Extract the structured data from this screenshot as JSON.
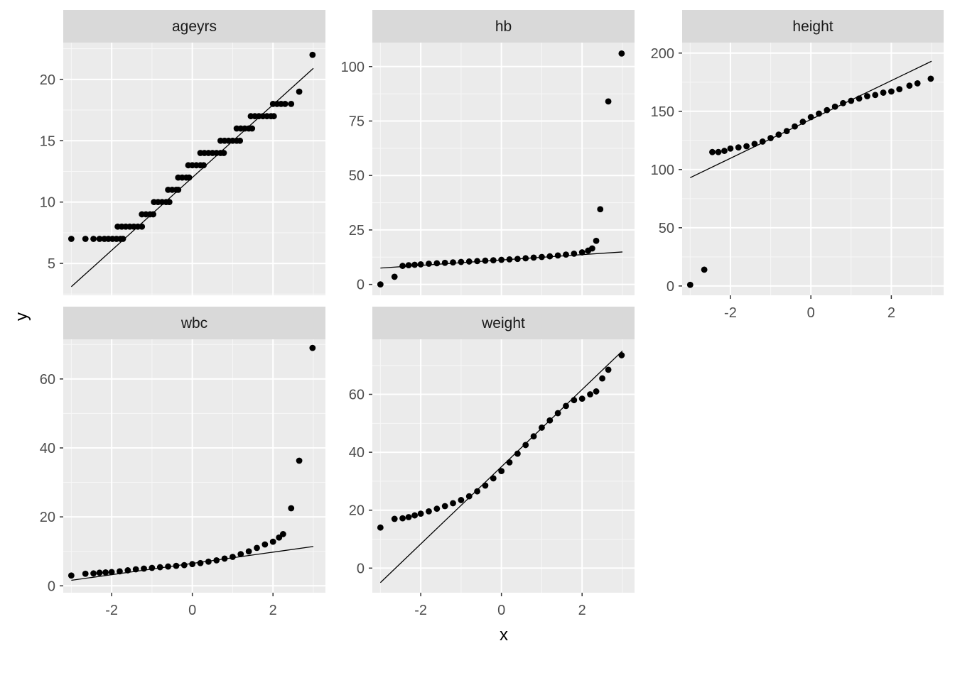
{
  "chart_data": {
    "type": "scatter",
    "subtype": "qq-facets",
    "xlabel": "x",
    "ylabel": "y",
    "x_ticks": [
      -2,
      0,
      2
    ],
    "x_range": [
      -3.2,
      3.3
    ],
    "grid": true,
    "facets": [
      {
        "name": "ageyrs",
        "ylim": [
          2.4,
          23.0
        ],
        "yticks": [
          5,
          10,
          15,
          20
        ],
        "line": {
          "x": [
            -3.0,
            3.0
          ],
          "y": [
            3.1,
            20.9
          ]
        },
        "points": [
          [
            -3.0,
            7
          ],
          [
            -2.65,
            7
          ],
          [
            -2.45,
            7
          ],
          [
            -2.3,
            7
          ],
          [
            -2.18,
            7
          ],
          [
            -2.08,
            7
          ],
          [
            -1.98,
            7
          ],
          [
            -1.88,
            7
          ],
          [
            -1.78,
            7
          ],
          [
            -1.72,
            7
          ],
          [
            -1.85,
            8
          ],
          [
            -1.75,
            8
          ],
          [
            -1.65,
            8
          ],
          [
            -1.55,
            8
          ],
          [
            -1.45,
            8
          ],
          [
            -1.35,
            8
          ],
          [
            -1.25,
            8
          ],
          [
            -1.25,
            9
          ],
          [
            -1.15,
            9
          ],
          [
            -1.05,
            9
          ],
          [
            -0.97,
            9
          ],
          [
            -0.95,
            10
          ],
          [
            -0.85,
            10
          ],
          [
            -0.75,
            10
          ],
          [
            -0.65,
            10
          ],
          [
            -0.57,
            10
          ],
          [
            -0.6,
            11
          ],
          [
            -0.5,
            11
          ],
          [
            -0.4,
            11
          ],
          [
            -0.35,
            11
          ],
          [
            -0.35,
            12
          ],
          [
            -0.25,
            12
          ],
          [
            -0.15,
            12
          ],
          [
            -0.08,
            12
          ],
          [
            -0.1,
            13
          ],
          [
            0.0,
            13
          ],
          [
            0.1,
            13
          ],
          [
            0.2,
            13
          ],
          [
            0.28,
            13
          ],
          [
            0.2,
            14
          ],
          [
            0.3,
            14
          ],
          [
            0.4,
            14
          ],
          [
            0.5,
            14
          ],
          [
            0.6,
            14
          ],
          [
            0.7,
            14
          ],
          [
            0.78,
            14
          ],
          [
            0.7,
            15
          ],
          [
            0.8,
            15
          ],
          [
            0.9,
            15
          ],
          [
            1.0,
            15
          ],
          [
            1.1,
            15
          ],
          [
            1.18,
            15
          ],
          [
            1.1,
            16
          ],
          [
            1.2,
            16
          ],
          [
            1.3,
            16
          ],
          [
            1.4,
            16
          ],
          [
            1.48,
            16
          ],
          [
            1.45,
            17
          ],
          [
            1.55,
            17
          ],
          [
            1.65,
            17
          ],
          [
            1.75,
            17
          ],
          [
            1.85,
            17
          ],
          [
            1.95,
            17
          ],
          [
            2.02,
            17
          ],
          [
            2.0,
            18
          ],
          [
            2.1,
            18
          ],
          [
            2.2,
            18
          ],
          [
            2.3,
            18
          ],
          [
            2.45,
            18
          ],
          [
            2.65,
            19
          ],
          [
            2.98,
            22
          ]
        ]
      },
      {
        "name": "hb",
        "ylim": [
          -5.0,
          111.0
        ],
        "yticks": [
          0,
          25,
          50,
          75,
          100
        ],
        "line": {
          "x": [
            -3.0,
            3.0
          ],
          "y": [
            7.5,
            14.9
          ]
        },
        "points": [
          [
            -3.0,
            0
          ],
          [
            -2.65,
            3.5
          ],
          [
            -2.45,
            8.5
          ],
          [
            -2.3,
            8.8
          ],
          [
            -2.15,
            9.0
          ],
          [
            -2.0,
            9.2
          ],
          [
            -1.8,
            9.5
          ],
          [
            -1.6,
            9.7
          ],
          [
            -1.4,
            9.9
          ],
          [
            -1.2,
            10.1
          ],
          [
            -1.0,
            10.3
          ],
          [
            -0.8,
            10.5
          ],
          [
            -0.6,
            10.7
          ],
          [
            -0.4,
            10.9
          ],
          [
            -0.2,
            11.1
          ],
          [
            0.0,
            11.3
          ],
          [
            0.2,
            11.5
          ],
          [
            0.4,
            11.7
          ],
          [
            0.6,
            12.0
          ],
          [
            0.8,
            12.3
          ],
          [
            1.0,
            12.6
          ],
          [
            1.2,
            12.9
          ],
          [
            1.4,
            13.3
          ],
          [
            1.6,
            13.7
          ],
          [
            1.8,
            14.1
          ],
          [
            2.0,
            14.7
          ],
          [
            2.15,
            15.5
          ],
          [
            2.25,
            16.5
          ],
          [
            2.35,
            20.0
          ],
          [
            2.45,
            34.5
          ],
          [
            2.65,
            84
          ],
          [
            2.98,
            106
          ]
        ]
      },
      {
        "name": "height",
        "ylim": [
          -8.0,
          209.0
        ],
        "yticks": [
          0,
          50,
          100,
          150,
          200
        ],
        "line": {
          "x": [
            -3.0,
            3.0
          ],
          "y": [
            93.0,
            193.0
          ]
        },
        "points": [
          [
            -3.0,
            1
          ],
          [
            -2.65,
            14
          ],
          [
            -2.45,
            115
          ],
          [
            -2.3,
            115
          ],
          [
            -2.15,
            116
          ],
          [
            -2.0,
            118
          ],
          [
            -1.8,
            119
          ],
          [
            -1.6,
            120
          ],
          [
            -1.4,
            122
          ],
          [
            -1.2,
            124
          ],
          [
            -1.0,
            127
          ],
          [
            -0.8,
            130
          ],
          [
            -0.6,
            133
          ],
          [
            -0.4,
            137
          ],
          [
            -0.2,
            141
          ],
          [
            0.0,
            145
          ],
          [
            0.2,
            148
          ],
          [
            0.4,
            151
          ],
          [
            0.6,
            154
          ],
          [
            0.8,
            157
          ],
          [
            1.0,
            159
          ],
          [
            1.2,
            161
          ],
          [
            1.4,
            163
          ],
          [
            1.6,
            164
          ],
          [
            1.8,
            166
          ],
          [
            2.0,
            167
          ],
          [
            2.2,
            169
          ],
          [
            2.45,
            172
          ],
          [
            2.65,
            174
          ],
          [
            2.98,
            178
          ]
        ]
      },
      {
        "name": "wbc",
        "ylim": [
          -2.0,
          71.5
        ],
        "yticks": [
          0,
          20,
          40,
          60
        ],
        "line": {
          "x": [
            -3.0,
            3.0
          ],
          "y": [
            1.6,
            11.4
          ]
        },
        "points": [
          [
            -3.0,
            3
          ],
          [
            -2.65,
            3.5
          ],
          [
            -2.45,
            3.6
          ],
          [
            -2.3,
            3.8
          ],
          [
            -2.15,
            3.9
          ],
          [
            -2.0,
            4.0
          ],
          [
            -1.8,
            4.2
          ],
          [
            -1.6,
            4.5
          ],
          [
            -1.4,
            4.8
          ],
          [
            -1.2,
            5.0
          ],
          [
            -1.0,
            5.2
          ],
          [
            -0.8,
            5.4
          ],
          [
            -0.6,
            5.6
          ],
          [
            -0.4,
            5.8
          ],
          [
            -0.2,
            6.0
          ],
          [
            0.0,
            6.3
          ],
          [
            0.2,
            6.6
          ],
          [
            0.4,
            7.0
          ],
          [
            0.6,
            7.4
          ],
          [
            0.8,
            7.9
          ],
          [
            1.0,
            8.4
          ],
          [
            1.2,
            9.2
          ],
          [
            1.4,
            10.0
          ],
          [
            1.6,
            11.0
          ],
          [
            1.8,
            12.0
          ],
          [
            2.0,
            12.8
          ],
          [
            2.15,
            14.0
          ],
          [
            2.25,
            15.0
          ],
          [
            2.45,
            22.5
          ],
          [
            2.65,
            36.3
          ],
          [
            2.98,
            69
          ]
        ]
      },
      {
        "name": "weight",
        "ylim": [
          -8.5,
          79.0
        ],
        "yticks": [
          0,
          20,
          40,
          60
        ],
        "line": {
          "x": [
            -3.0,
            3.0
          ],
          "y": [
            -5.0,
            75.0
          ]
        },
        "points": [
          [
            -3.0,
            14
          ],
          [
            -2.65,
            17
          ],
          [
            -2.45,
            17.2
          ],
          [
            -2.3,
            17.6
          ],
          [
            -2.15,
            18.2
          ],
          [
            -2.0,
            18.8
          ],
          [
            -1.8,
            19.6
          ],
          [
            -1.6,
            20.5
          ],
          [
            -1.4,
            21.4
          ],
          [
            -1.2,
            22.4
          ],
          [
            -1.0,
            23.5
          ],
          [
            -0.8,
            24.8
          ],
          [
            -0.6,
            26.5
          ],
          [
            -0.4,
            28.5
          ],
          [
            -0.2,
            31.0
          ],
          [
            0.0,
            33.5
          ],
          [
            0.2,
            36.5
          ],
          [
            0.4,
            39.5
          ],
          [
            0.6,
            42.5
          ],
          [
            0.8,
            45.5
          ],
          [
            1.0,
            48.5
          ],
          [
            1.2,
            51.0
          ],
          [
            1.4,
            53.5
          ],
          [
            1.6,
            56.0
          ],
          [
            1.8,
            58.0
          ],
          [
            2.0,
            58.5
          ],
          [
            2.2,
            60.0
          ],
          [
            2.35,
            61.0
          ],
          [
            2.5,
            65.5
          ],
          [
            2.65,
            68.5
          ],
          [
            2.98,
            73.5
          ]
        ]
      }
    ]
  }
}
